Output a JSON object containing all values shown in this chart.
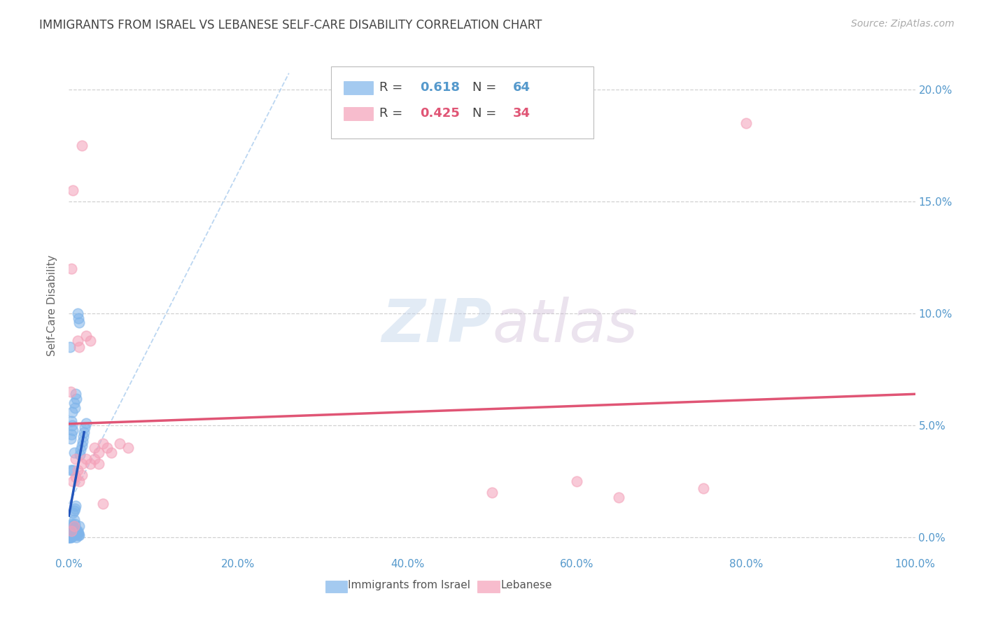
{
  "title": "IMMIGRANTS FROM ISRAEL VS LEBANESE SELF-CARE DISABILITY CORRELATION CHART",
  "source": "Source: ZipAtlas.com",
  "xlim": [
    0,
    1.0
  ],
  "ylim": [
    -0.008,
    0.215
  ],
  "ylabel": "Self-Care Disability",
  "israel_r": "0.618",
  "israel_n": "64",
  "lebanese_r": "0.425",
  "lebanese_n": "34",
  "israel_points": [
    [
      0.0,
      0.0
    ],
    [
      0.0,
      0.001
    ],
    [
      0.001,
      0.0
    ],
    [
      0.001,
      0.001
    ],
    [
      0.001,
      0.002
    ],
    [
      0.001,
      0.003
    ],
    [
      0.001,
      0.004
    ],
    [
      0.001,
      0.085
    ],
    [
      0.002,
      0.0
    ],
    [
      0.002,
      0.001
    ],
    [
      0.002,
      0.002
    ],
    [
      0.002,
      0.003
    ],
    [
      0.002,
      0.03
    ],
    [
      0.002,
      0.044
    ],
    [
      0.003,
      0.0
    ],
    [
      0.003,
      0.001
    ],
    [
      0.003,
      0.002
    ],
    [
      0.003,
      0.005
    ],
    [
      0.003,
      0.046
    ],
    [
      0.003,
      0.052
    ],
    [
      0.004,
      0.002
    ],
    [
      0.004,
      0.006
    ],
    [
      0.004,
      0.05
    ],
    [
      0.004,
      0.056
    ],
    [
      0.005,
      0.001
    ],
    [
      0.005,
      0.011
    ],
    [
      0.005,
      0.03
    ],
    [
      0.005,
      0.048
    ],
    [
      0.006,
      0.003
    ],
    [
      0.006,
      0.008
    ],
    [
      0.006,
      0.012
    ],
    [
      0.006,
      0.038
    ],
    [
      0.006,
      0.06
    ],
    [
      0.007,
      0.002
    ],
    [
      0.007,
      0.006
    ],
    [
      0.007,
      0.013
    ],
    [
      0.007,
      0.058
    ],
    [
      0.008,
      0.001
    ],
    [
      0.008,
      0.004
    ],
    [
      0.008,
      0.014
    ],
    [
      0.008,
      0.064
    ],
    [
      0.009,
      0.0
    ],
    [
      0.009,
      0.003
    ],
    [
      0.009,
      0.062
    ],
    [
      0.01,
      0.002
    ],
    [
      0.01,
      0.003
    ],
    [
      0.01,
      0.1
    ],
    [
      0.011,
      0.001
    ],
    [
      0.011,
      0.002
    ],
    [
      0.011,
      0.098
    ],
    [
      0.012,
      0.001
    ],
    [
      0.012,
      0.005
    ],
    [
      0.012,
      0.096
    ],
    [
      0.013,
      0.037
    ],
    [
      0.014,
      0.039
    ],
    [
      0.015,
      0.041
    ],
    [
      0.016,
      0.043
    ],
    [
      0.017,
      0.045
    ],
    [
      0.018,
      0.047
    ],
    [
      0.019,
      0.049
    ],
    [
      0.02,
      0.051
    ],
    [
      0.0,
      0.0
    ],
    [
      0.0,
      0.0
    ],
    [
      0.0,
      0.0
    ]
  ],
  "lebanese_points": [
    [
      0.002,
      0.065
    ],
    [
      0.003,
      0.003
    ],
    [
      0.003,
      0.12
    ],
    [
      0.005,
      0.025
    ],
    [
      0.005,
      0.155
    ],
    [
      0.006,
      0.005
    ],
    [
      0.008,
      0.027
    ],
    [
      0.008,
      0.035
    ],
    [
      0.01,
      0.03
    ],
    [
      0.01,
      0.088
    ],
    [
      0.012,
      0.025
    ],
    [
      0.012,
      0.085
    ],
    [
      0.015,
      0.028
    ],
    [
      0.015,
      0.033
    ],
    [
      0.015,
      0.175
    ],
    [
      0.02,
      0.035
    ],
    [
      0.02,
      0.09
    ],
    [
      0.025,
      0.033
    ],
    [
      0.025,
      0.088
    ],
    [
      0.03,
      0.035
    ],
    [
      0.03,
      0.04
    ],
    [
      0.035,
      0.033
    ],
    [
      0.035,
      0.038
    ],
    [
      0.04,
      0.015
    ],
    [
      0.04,
      0.042
    ],
    [
      0.045,
      0.04
    ],
    [
      0.05,
      0.038
    ],
    [
      0.06,
      0.042
    ],
    [
      0.07,
      0.04
    ],
    [
      0.5,
      0.02
    ],
    [
      0.6,
      0.025
    ],
    [
      0.65,
      0.018
    ],
    [
      0.8,
      0.185
    ],
    [
      0.75,
      0.022
    ]
  ],
  "israel_line_color": "#2255BB",
  "lebanese_line_color": "#E05575",
  "israel_dot_color": "#7EB4EA",
  "lebanese_dot_color": "#F4A0B8",
  "background_color": "#FFFFFF",
  "grid_color": "#CCCCCC",
  "title_color": "#444444",
  "axis_color": "#5599CC",
  "watermark_color": "#D0DCF0",
  "diag_line_color": "#AACCEE"
}
